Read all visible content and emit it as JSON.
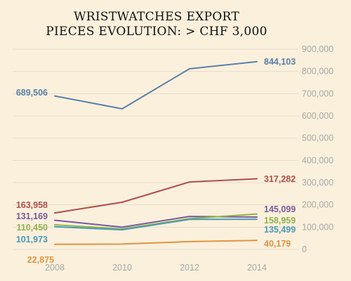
{
  "chart_data": {
    "type": "line",
    "title_lines": [
      "WRISTWATCHES EXPORT",
      "PIECES EVOLUTION: > CHF 3,000"
    ],
    "xlabel": "",
    "ylabel": "",
    "x": [
      "2008",
      "2010",
      "2012",
      "2014"
    ],
    "y_ticks": [
      "0",
      "100,000",
      "200,000",
      "300,000",
      "400,000",
      "500,000",
      "600,000",
      "700,000",
      "800,000",
      "900,000"
    ],
    "ylim": [
      0,
      900000
    ],
    "grid": true,
    "legend": "none",
    "series": [
      {
        "color": "#5b80ab",
        "values": [
          689506,
          632000,
          812000,
          844103
        ],
        "first_label": "689,506",
        "last_label": "844,103"
      },
      {
        "color": "#b04e4a",
        "values": [
          163958,
          212000,
          303000,
          317282
        ],
        "first_label": "163,958",
        "last_label": "317,282"
      },
      {
        "color": "#7a5a9a",
        "values": [
          131169,
          100000,
          148000,
          145099
        ],
        "first_label": "131,169",
        "last_label": "145,099"
      },
      {
        "color": "#8fb24e",
        "values": [
          110450,
          92000,
          138000,
          158959
        ],
        "first_label": "110,450",
        "last_label": "158,959"
      },
      {
        "color": "#4a9bb4",
        "values": [
          101973,
          88000,
          135000,
          135499
        ],
        "first_label": "101,973",
        "last_label": "135,499"
      },
      {
        "color": "#e09440",
        "values": [
          22875,
          24000,
          35000,
          40179
        ],
        "first_label": "22,875",
        "last_label": "40,179"
      }
    ]
  }
}
